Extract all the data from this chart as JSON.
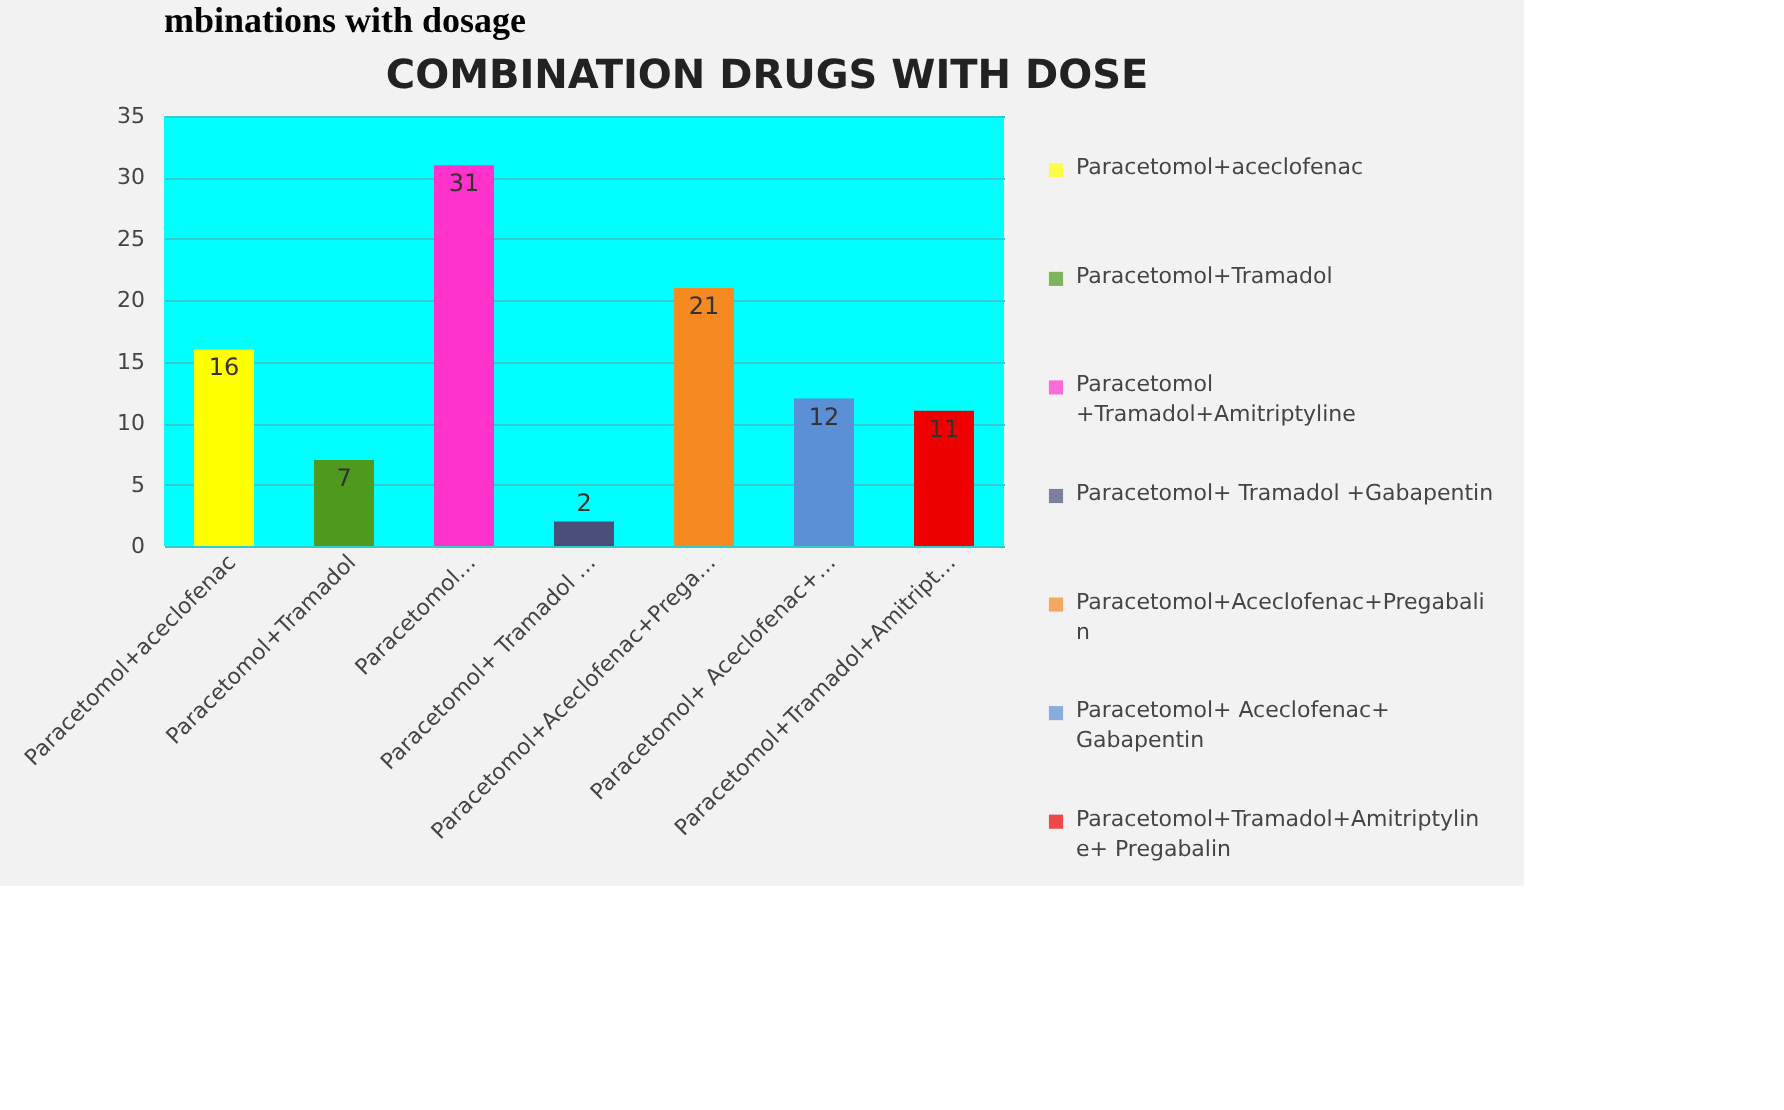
{
  "chart_data": {
    "type": "bar",
    "title": "COMBINATION DRUGS WITH DOSE",
    "annotations": [
      "mbinations with dosage"
    ],
    "categories": [
      "Paracetomol+aceclofenac",
      "Paracetomol+Tramadol",
      "Paracetomol…",
      "Paracetomol+ Tramadol …",
      "Paracetomol+Aceclofenac+Prega…",
      "Paracetomol+ Aceclofenac+…",
      "Paracetomol+Tramadol+Amitript…"
    ],
    "series": [
      {
        "name": "Paracetomol+aceclofenac",
        "color": "#ffff00",
        "values": [
          16,
          null,
          null,
          null,
          null,
          null,
          null
        ]
      },
      {
        "name": "Paracetomol+Tramadol",
        "color": "#4e9a1e",
        "values": [
          null,
          7,
          null,
          null,
          null,
          null,
          null
        ]
      },
      {
        "name": "Paracetomol +Tramadol+Amitriptyline",
        "color": "#ff33cc",
        "values": [
          null,
          null,
          31,
          null,
          null,
          null,
          null
        ]
      },
      {
        "name": "Paracetomol+ Tramadol +Gabapentin",
        "color": "#4a4f7a",
        "values": [
          null,
          null,
          null,
          2,
          null,
          null,
          null
        ]
      },
      {
        "name": "Paracetomol+Aceclofenac+Pregabalin",
        "color": "#f58a22",
        "values": [
          null,
          null,
          null,
          null,
          21,
          null,
          null
        ]
      },
      {
        "name": "Paracetomol+ Aceclofenac+ Gabapentin",
        "color": "#5b8fd6",
        "values": [
          null,
          null,
          null,
          null,
          null,
          12,
          null
        ]
      },
      {
        "name": "Paracetomol+Tramadol+Amitriptyline+ Pregabalin",
        "color": "#ee0000",
        "values": [
          null,
          null,
          null,
          null,
          null,
          null,
          11
        ]
      }
    ],
    "ylim": [
      0,
      35
    ],
    "yticks": [
      0,
      5,
      10,
      15,
      20,
      25,
      30,
      35
    ],
    "grid": "y",
    "legend": "right",
    "data_labels": true
  }
}
